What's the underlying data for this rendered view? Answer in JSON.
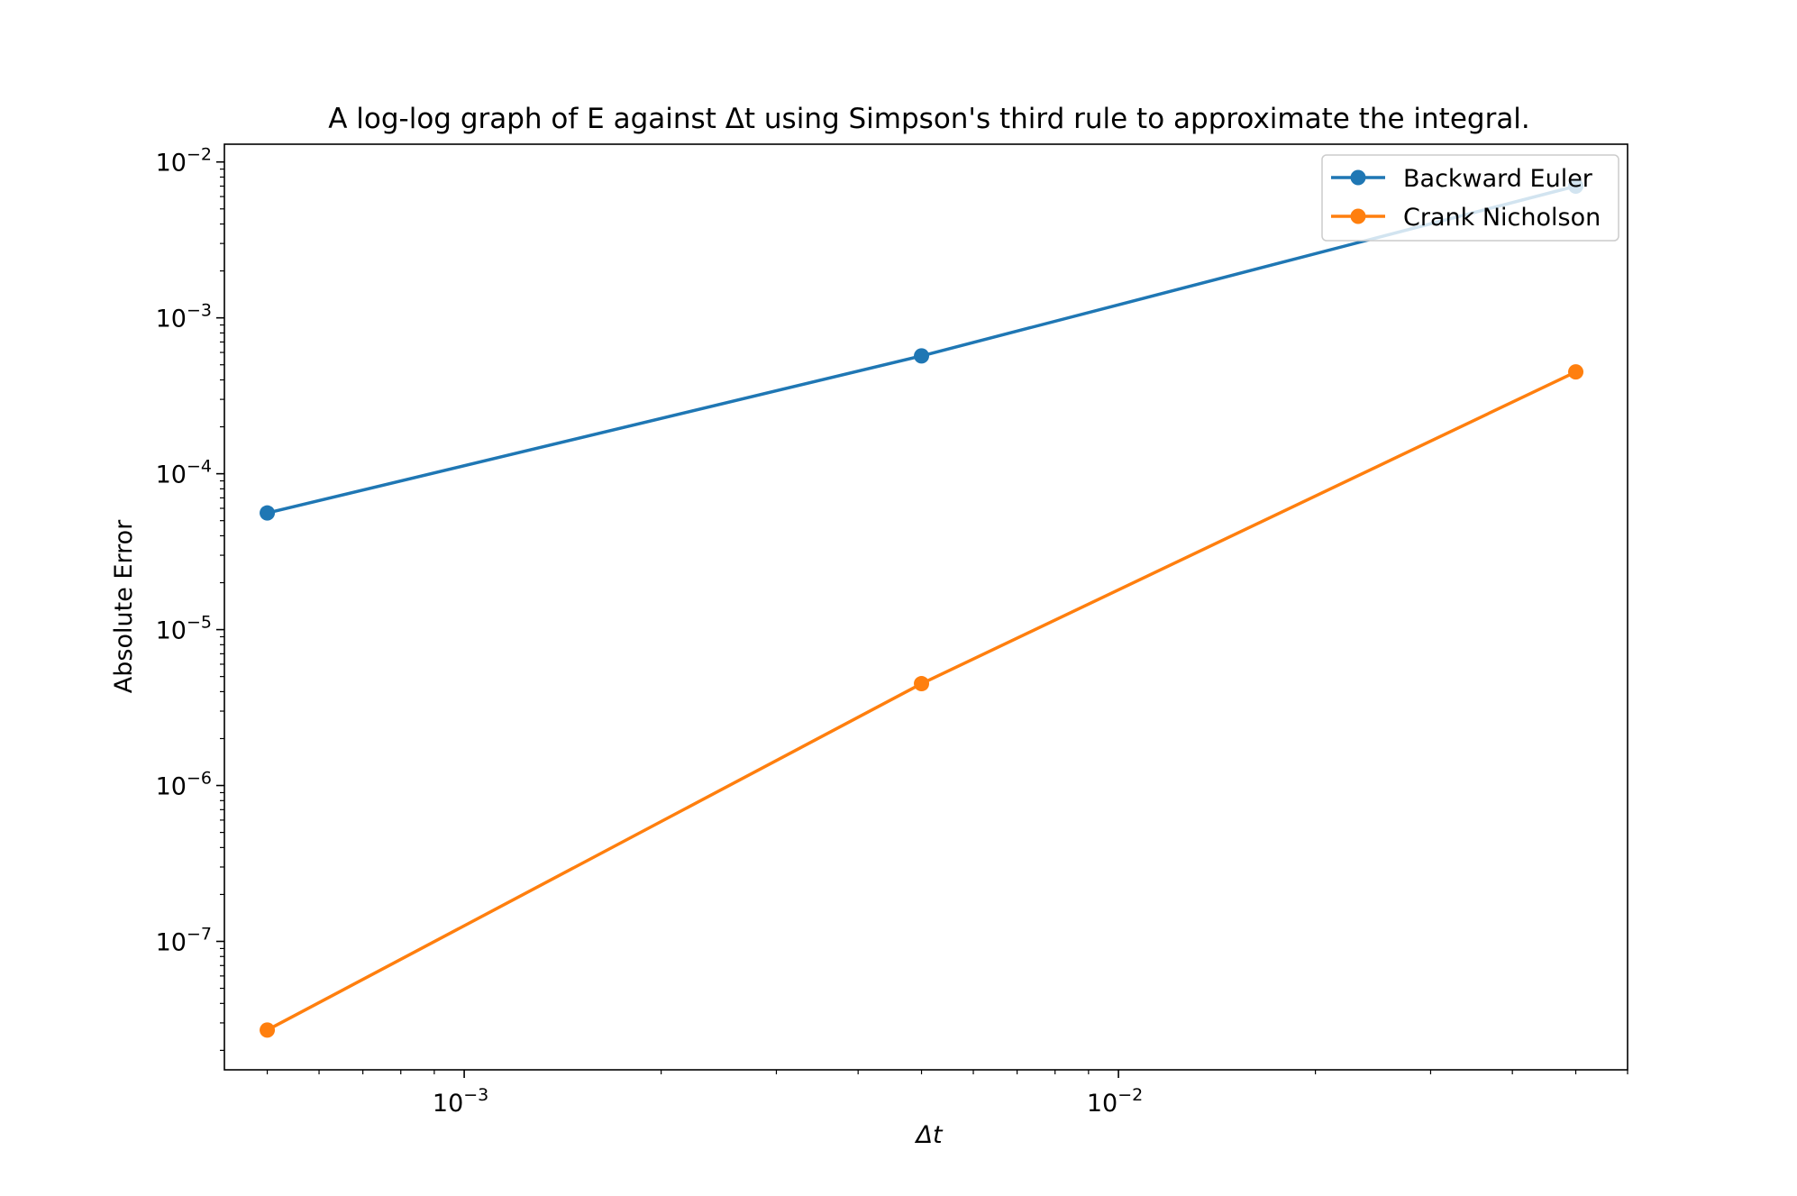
{
  "chart_data": {
    "type": "line",
    "title": "A log-log graph of E against Δt using Simpson's third rule to approximate the integral.",
    "xlabel": "Δt",
    "ylabel": "Absolute Error",
    "xscale": "log",
    "yscale": "log",
    "xlim": [
      0.00043,
      0.06
    ],
    "ylim": [
      1.5e-08,
      0.013
    ],
    "x_ticks": [
      {
        "value": 0.001,
        "base": "10",
        "exp": "−3"
      },
      {
        "value": 0.01,
        "base": "10",
        "exp": "−2"
      }
    ],
    "y_ticks": [
      {
        "value": 1e-07,
        "base": "10",
        "exp": "−7"
      },
      {
        "value": 1e-06,
        "base": "10",
        "exp": "−6"
      },
      {
        "value": 1e-05,
        "base": "10",
        "exp": "−5"
      },
      {
        "value": 0.0001,
        "base": "10",
        "exp": "−4"
      },
      {
        "value": 0.001,
        "base": "10",
        "exp": "−3"
      },
      {
        "value": 0.01,
        "base": "10",
        "exp": "−2"
      }
    ],
    "x": [
      0.0005,
      0.005,
      0.05
    ],
    "series": [
      {
        "name": "Backward Euler",
        "color": "#1f77b4",
        "values": [
          5.6e-05,
          0.00057,
          0.007
        ]
      },
      {
        "name": "Crank Nicholson",
        "color": "#ff7f0e",
        "values": [
          2.7e-08,
          4.5e-06,
          0.00045
        ]
      }
    ],
    "grid": false,
    "legend_position": "top-right"
  }
}
